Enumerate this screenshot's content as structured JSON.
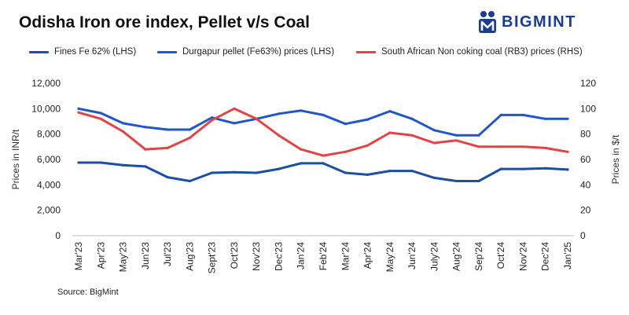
{
  "header": {
    "title": "Odisha Iron ore index, Pellet v/s Coal",
    "logo_text": "BIGMINT",
    "logo_icon": "bigmint-logo-icon",
    "logo_color": "#1a3d8f"
  },
  "footer": {
    "source": "Source: BigMint"
  },
  "chart_data": {
    "type": "line",
    "title": "Odisha Iron ore index, Pellet v/s Coal",
    "legend_position": "top",
    "grid": false,
    "categories": [
      "Mar'23",
      "Apr'23",
      "May'23",
      "Jun'23",
      "Jul'23",
      "Aug'23",
      "Sept'23",
      "Oct'23",
      "Nov'23",
      "Dec'23",
      "Jan'24",
      "Feb'24",
      "Mar'24",
      "Apr'24",
      "May'24",
      "Jun'24",
      "July'24",
      "Aug'24",
      "Sep'24",
      "Oct'24",
      "Nov'24",
      "Dec'24",
      "Jan'25"
    ],
    "y_left": {
      "label": "Prices in INR/t",
      "range": [
        0,
        12000
      ],
      "ticks": [
        "0",
        "2,000",
        "4,000",
        "6,000",
        "8,000",
        "10,000",
        "12,000"
      ]
    },
    "y_right": {
      "label": "Prices in $/t",
      "range": [
        0,
        120
      ],
      "ticks": [
        "0",
        "20",
        "40",
        "60",
        "80",
        "100",
        "120"
      ]
    },
    "series": [
      {
        "name": "Fines Fe 62% (LHS)",
        "axis": "left",
        "color": "#1c4fa0",
        "values": [
          5750,
          5750,
          5550,
          5450,
          4600,
          4300,
          4950,
          5000,
          4950,
          5250,
          5700,
          5700,
          4950,
          4800,
          5100,
          5100,
          4550,
          4300,
          4300,
          5250,
          5250,
          5300,
          5200
        ]
      },
      {
        "name": "Durgapur pellet (Fe63%) prices (LHS)",
        "axis": "left",
        "color": "#1f56c8",
        "values": [
          10000,
          9650,
          8850,
          8550,
          8350,
          8350,
          9300,
          8850,
          9200,
          9600,
          9850,
          9500,
          8800,
          9150,
          9800,
          9200,
          8300,
          7900,
          7900,
          9500,
          9500,
          9200,
          9200
        ]
      },
      {
        "name": "South African Non coking coal (RB3) prices (RHS)",
        "axis": "right",
        "color": "#e04545",
        "values": [
          97,
          92,
          82,
          68,
          69,
          77,
          91,
          100,
          92,
          79,
          68,
          63,
          66,
          71,
          81,
          79,
          73,
          75,
          70,
          70,
          70,
          69,
          66
        ]
      }
    ]
  }
}
